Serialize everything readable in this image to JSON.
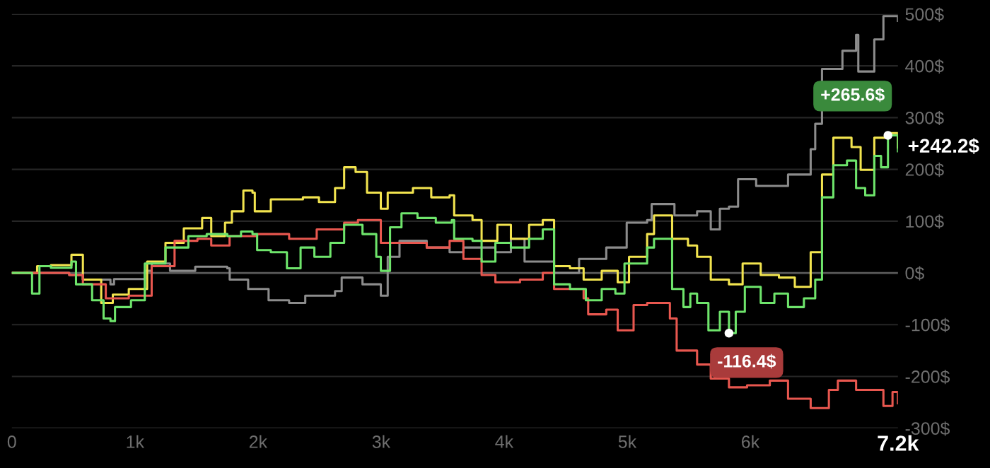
{
  "chart_data": {
    "type": "step",
    "xlim": [
      0,
      7200
    ],
    "xticks": [
      0,
      {
        "value": 1000,
        "label": "1k"
      },
      {
        "value": 2000,
        "label": "2k"
      },
      {
        "value": 3000,
        "label": "3k"
      },
      {
        "value": 4000,
        "label": "4k"
      },
      {
        "value": 5000,
        "label": "5k"
      },
      {
        "value": 6000,
        "label": "6k"
      },
      {
        "value": 7200,
        "label": "7.2k"
      }
    ],
    "ylim": [
      -300,
      500
    ],
    "yticks": [
      {
        "value": -300,
        "label": "-300$"
      },
      {
        "value": -200,
        "label": "-200$"
      },
      {
        "value": -100,
        "label": "-100$"
      },
      {
        "value": 0,
        "label": "0$"
      },
      {
        "value": 100,
        "label": "100$"
      },
      {
        "value": 200,
        "label": "200$"
      },
      {
        "value": 300,
        "label": "300$"
      },
      {
        "value": 400,
        "label": "400$"
      },
      {
        "value": 500,
        "label": "500$"
      }
    ],
    "grid": "y",
    "ref_lines": [
      {
        "axis": "y",
        "value": 0,
        "color": "#5a5a5a"
      }
    ],
    "annotations": [
      {
        "text": "+265.6$",
        "x": 7119,
        "y": 265.6
      },
      {
        "text": "-116.4$",
        "x": 5827,
        "y": -116.4
      },
      {
        "text": "+242.2$",
        "x": 7200,
        "y": 242.2
      }
    ],
    "series": [
      {
        "color": "#8c8c8c",
        "x": [
          0,
          466,
          577,
          801,
          830,
          950,
          1080,
          1136,
          1285,
          1490,
          1750,
          1770,
          1880,
          1920,
          2086,
          2253,
          2384,
          2626,
          2680,
          2849,
          2998,
          3054,
          3150,
          3371,
          3557,
          3669,
          3929,
          4055,
          4166,
          4406,
          4609,
          4830,
          4996,
          5162,
          5199,
          5384,
          5568,
          5679,
          5753,
          5827,
          5901,
          6048,
          6196,
          6307,
          6491,
          6528,
          6583,
          6749,
          6860,
          6878,
          7008,
          7082,
          7200
        ],
        "values": [
          0,
          -4,
          -13,
          -22,
          -12,
          -12,
          4,
          18,
          4,
          12,
          9,
          -13,
          -13,
          -31,
          -53,
          -58,
          -44,
          -35,
          -9,
          -22,
          -44,
          31,
          62,
          49,
          40,
          49,
          40,
          66,
          22,
          0,
          27,
          49,
          97,
          102,
          133,
          111,
          119,
          84,
          124,
          128,
          181,
          168,
          168,
          190,
          239,
          288,
          394,
          429,
          460,
          389,
          451,
          496,
          487
        ]
      },
      {
        "color": "#f2e44f",
        "x": [
          0,
          205,
          317,
          484,
          577,
          726,
          820,
          950,
          1099,
          1248,
          1397,
          1546,
          1620,
          1732,
          1788,
          1881,
          1955,
          1974,
          2104,
          2253,
          2365,
          2495,
          2626,
          2700,
          2793,
          2886,
          2998,
          3054,
          3259,
          3408,
          3557,
          3594,
          3743,
          3817,
          3945,
          4055,
          4203,
          4314,
          4406,
          4535,
          4646,
          4793,
          4923,
          5015,
          5162,
          5218,
          5365,
          5494,
          5568,
          5679,
          5827,
          5938,
          6085,
          6233,
          6362,
          6491,
          6583,
          6675,
          6823,
          6897,
          7008,
          7100,
          7200
        ],
        "values": [
          0,
          13,
          15,
          35,
          -13,
          -58,
          -42,
          -31,
          22,
          58,
          86,
          106,
          71,
          97,
          119,
          159,
          155,
          119,
          142,
          142,
          146,
          137,
          164,
          204,
          195,
          155,
          124,
          155,
          164,
          146,
          150,
          111,
          102,
          62,
          93,
          66,
          93,
          102,
          13,
          9,
          -13,
          4,
          -18,
          31,
          75,
          111,
          66,
          53,
          31,
          -13,
          -22,
          18,
          -4,
          -9,
          -27,
          40,
          190,
          261,
          243,
          199,
          261,
          270,
          242.2
        ]
      },
      {
        "color": "#e8574f",
        "x": [
          0,
          205,
          466,
          577,
          763,
          950,
          1136,
          1322,
          1508,
          1620,
          1769,
          1993,
          2253,
          2477,
          2700,
          2812,
          2998,
          3185,
          3371,
          3557,
          3669,
          3817,
          3929,
          4129,
          4314,
          4406,
          4646,
          4683,
          4830,
          4923,
          5052,
          5162,
          5347,
          5402,
          5568,
          5679,
          5827,
          5974,
          6159,
          6307,
          6491,
          6639,
          6712,
          6860,
          7008,
          7082,
          7156,
          7200
        ],
        "values": [
          0,
          0,
          -4,
          -22,
          -49,
          -44,
          13,
          62,
          66,
          53,
          71,
          75,
          66,
          84,
          97,
          102,
          58,
          58,
          49,
          62,
          27,
          -4,
          -18,
          -13,
          0,
          -31,
          -49,
          -80,
          -71,
          -111,
          -62,
          -58,
          -88,
          -150,
          -177,
          -204,
          -221,
          -217,
          -208,
          -243,
          -261,
          -226,
          -208,
          -226,
          -226,
          -257,
          -230,
          -252
        ]
      },
      {
        "color": "#6ee46b",
        "x": [
          0,
          164,
          224,
          317,
          484,
          521,
          652,
          745,
          801,
          838,
          968,
          1080,
          1248,
          1434,
          1583,
          1751,
          1862,
          1955,
          1993,
          2104,
          2235,
          2346,
          2458,
          2588,
          2700,
          2849,
          2961,
          2998,
          3073,
          3166,
          3296,
          3445,
          3575,
          3594,
          3743,
          3817,
          3929,
          4055,
          4203,
          4314,
          4406,
          4535,
          4664,
          4793,
          4904,
          4978,
          5162,
          5218,
          5365,
          5457,
          5513,
          5568,
          5660,
          5753,
          5827,
          5882,
          5956,
          6085,
          6196,
          6307,
          6436,
          6528,
          6583,
          6675,
          6786,
          6860,
          6934,
          7008,
          7063,
          7119,
          7200
        ],
        "values": [
          0,
          -40,
          13,
          10,
          22,
          -22,
          -53,
          -88,
          -93,
          -66,
          -53,
          18,
          49,
          71,
          75,
          71,
          80,
          75,
          44,
          40,
          9,
          49,
          31,
          58,
          93,
          75,
          31,
          4,
          88,
          115,
          106,
          97,
          102,
          66,
          62,
          22,
          58,
          49,
          66,
          84,
          -22,
          -31,
          -53,
          -31,
          -40,
          18,
          49,
          66,
          -31,
          -66,
          -40,
          -58,
          -111,
          -75,
          -116.4,
          -75,
          -27,
          -58,
          -40,
          -66,
          -49,
          -13,
          146,
          208,
          217,
          164,
          150,
          226,
          204,
          265.6,
          235
        ]
      }
    ]
  }
}
